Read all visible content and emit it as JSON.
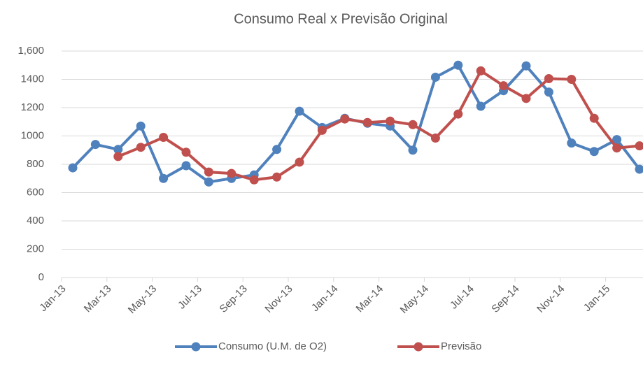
{
  "chart_data": {
    "type": "line",
    "title": "Consumo Real x Previsão Original",
    "categories": [
      "Jan-13",
      null,
      "Mar-13",
      null,
      "May-13",
      null,
      "Jul-13",
      null,
      "Sep-13",
      null,
      "Nov-13",
      null,
      "Jan-14",
      null,
      "Mar-14",
      null,
      "May-14",
      null,
      "Jul-14",
      null,
      "Sep-14",
      null,
      "Nov-14",
      null,
      "Jan-15",
      null
    ],
    "series": [
      {
        "name": "Consumo (U.M. de O2)",
        "color": "#4f81bd",
        "values": [
          775,
          940,
          905,
          1070,
          700,
          790,
          675,
          700,
          725,
          905,
          1175,
          1060,
          1125,
          1090,
          1070,
          900,
          1415,
          1500,
          1210,
          1320,
          1495,
          1310,
          950,
          890,
          975,
          765
        ]
      },
      {
        "name": "Previsão",
        "color": "#c0504d",
        "values": [
          null,
          null,
          855,
          920,
          990,
          885,
          745,
          735,
          690,
          710,
          815,
          1040,
          1120,
          1095,
          1105,
          1080,
          985,
          1155,
          1460,
          1355,
          1265,
          1405,
          1400,
          1125,
          915,
          930
        ]
      }
    ],
    "ylim": [
      0,
      1600
    ],
    "yticks": [
      0,
      200,
      400,
      600,
      800,
      1000,
      1200,
      1400,
      {
        "value": 1600,
        "label": "1,600"
      }
    ],
    "grid": true,
    "legend": "bottom"
  }
}
